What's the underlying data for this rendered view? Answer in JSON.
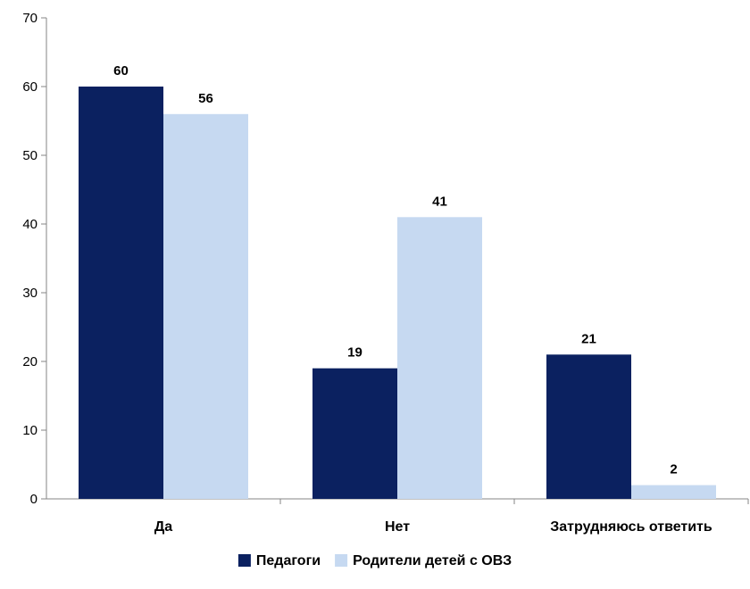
{
  "chart_data": {
    "type": "bar",
    "categories": [
      "Да",
      "Нет",
      "Затрудняюсь ответить"
    ],
    "series": [
      {
        "name": "Педагоги",
        "values": [
          60,
          19,
          21
        ],
        "color": "#0b2160"
      },
      {
        "name": "Родители детей с ОВЗ",
        "values": [
          56,
          41,
          2
        ],
        "color": "#c6d9f1"
      }
    ],
    "ylim": [
      0,
      70
    ],
    "yticks": [
      0,
      10,
      20,
      30,
      40,
      50,
      60,
      70
    ],
    "grid": false,
    "legend": "bottom-center",
    "data_labels": true
  }
}
